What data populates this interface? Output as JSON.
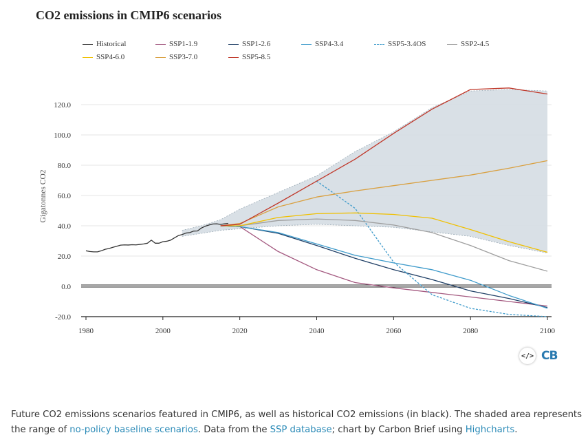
{
  "chart_data": {
    "type": "line",
    "title": "CO2 emissions in CMIP6 scenarios",
    "xlabel": "",
    "ylabel": "Gigatonnes CO2",
    "xlim": [
      1980,
      2100
    ],
    "ylim": [
      -20,
      130
    ],
    "xticks": [
      "1980",
      "2000",
      "2020",
      "2040",
      "2060",
      "2080",
      "2100"
    ],
    "yticks": [
      "-20.0",
      "0.0",
      "20.0",
      "40.0",
      "60.0",
      "80.0",
      "100.0",
      "120.0"
    ],
    "shaded_range": {
      "name": "range of no-policy baseline scenarios",
      "x": [
        2005,
        2010,
        2015,
        2020,
        2030,
        2040,
        2050,
        2060,
        2070,
        2080,
        2090,
        2100
      ],
      "upper": [
        37,
        40,
        44,
        51,
        62,
        73,
        89,
        102,
        118,
        129,
        130,
        129
      ],
      "lower": [
        33,
        35,
        37,
        38,
        40,
        41,
        40,
        39,
        36,
        33,
        27,
        22
      ]
    },
    "series": [
      {
        "name": "Historical",
        "color": "#333333",
        "dashed": false,
        "x": [
          1980,
          1981,
          1982,
          1983,
          1984,
          1985,
          1986,
          1987,
          1988,
          1989,
          1990,
          1991,
          1992,
          1993,
          1994,
          1995,
          1996,
          1997,
          1998,
          1999,
          2000,
          2001,
          2002,
          2003,
          2004,
          2005,
          2006,
          2007,
          2008,
          2009,
          2010,
          2011,
          2012,
          2013,
          2014,
          2015,
          2016,
          2017
        ],
        "y": [
          23.5,
          23,
          22.8,
          22.8,
          23.5,
          24.5,
          25,
          25.8,
          26.5,
          27.2,
          27.4,
          27.3,
          27.5,
          27.4,
          27.7,
          28,
          28.5,
          30.5,
          28.5,
          28.5,
          29.5,
          29.8,
          30.5,
          32,
          33.5,
          34.2,
          35.2,
          35.5,
          36.5,
          36.6,
          38.5,
          39.7,
          40.5,
          41.2,
          41.3,
          40.9,
          41.3,
          41.6
        ]
      },
      {
        "name": "SSP1-1.9",
        "color": "#a3587f",
        "dashed": false,
        "x": [
          2015,
          2020,
          2030,
          2040,
          2050,
          2060,
          2070,
          2080,
          2090,
          2100
        ],
        "y": [
          40,
          39.5,
          23,
          11,
          2.5,
          -1,
          -4,
          -7,
          -10,
          -13
        ]
      },
      {
        "name": "SSP1-2.6",
        "color": "#1f3f66",
        "dashed": false,
        "x": [
          2015,
          2020,
          2030,
          2040,
          2050,
          2060,
          2070,
          2080,
          2090,
          2100
        ],
        "y": [
          40,
          39.5,
          35,
          27,
          18.5,
          11,
          4.5,
          -3,
          -8,
          -14
        ]
      },
      {
        "name": "SSP4-3.4",
        "color": "#3f9bcb",
        "dashed": false,
        "x": [
          2015,
          2020,
          2030,
          2040,
          2050,
          2060,
          2070,
          2080,
          2090,
          2100
        ],
        "y": [
          40,
          39.5,
          35.5,
          28,
          20.5,
          15.5,
          11,
          4,
          -6,
          -14.5
        ]
      },
      {
        "name": "SSP5-3.4OS",
        "color": "#3f9bcb",
        "dashed": true,
        "x": [
          2040,
          2050,
          2060,
          2070,
          2080,
          2090,
          2100
        ],
        "y": [
          69.5,
          51.5,
          16,
          -5.5,
          -14.5,
          -18.5,
          -20
        ]
      },
      {
        "name": "SSP2-4.5",
        "color": "#9e9e9e",
        "dashed": false,
        "x": [
          2015,
          2020,
          2030,
          2040,
          2050,
          2060,
          2070,
          2080,
          2090,
          2100
        ],
        "y": [
          40,
          40,
          43.5,
          44.5,
          43.5,
          40.5,
          35.5,
          27,
          17,
          10
        ]
      },
      {
        "name": "SSP4-6.0",
        "color": "#f0c000",
        "dashed": false,
        "x": [
          2015,
          2020,
          2030,
          2040,
          2050,
          2060,
          2070,
          2080,
          2090,
          2100
        ],
        "y": [
          40,
          40,
          45.5,
          48,
          48.5,
          47.5,
          45,
          37.5,
          29.5,
          22.5
        ]
      },
      {
        "name": "SSP3-7.0",
        "color": "#d9a040",
        "dashed": false,
        "x": [
          2015,
          2020,
          2030,
          2040,
          2050,
          2060,
          2070,
          2080,
          2090,
          2100
        ],
        "y": [
          40,
          41.5,
          52.5,
          59,
          63,
          66.5,
          70,
          73.5,
          78,
          83
        ]
      },
      {
        "name": "SSP5-8.5",
        "color": "#c0392b",
        "dashed": false,
        "x": [
          2015,
          2020,
          2030,
          2040,
          2050,
          2060,
          2070,
          2080,
          2090,
          2100
        ],
        "y": [
          40,
          41,
          55,
          69.5,
          84,
          101,
          117,
          130,
          131,
          127
        ]
      }
    ],
    "legend_position": "top",
    "grid": true
  },
  "logo": {
    "icon_text": "</>",
    "text": "CB"
  },
  "caption": {
    "part1": "Future CO2 emissions scenarios featured in CMIP6, as well as historical CO2 emissions (in black). The shaded area represents the range of ",
    "link1": "no-policy baseline scenarios",
    "part2": ". Data from the ",
    "link2": "SSP database",
    "part3": "; chart by Carbon Brief using ",
    "link3": "Highcharts",
    "part4": "."
  }
}
